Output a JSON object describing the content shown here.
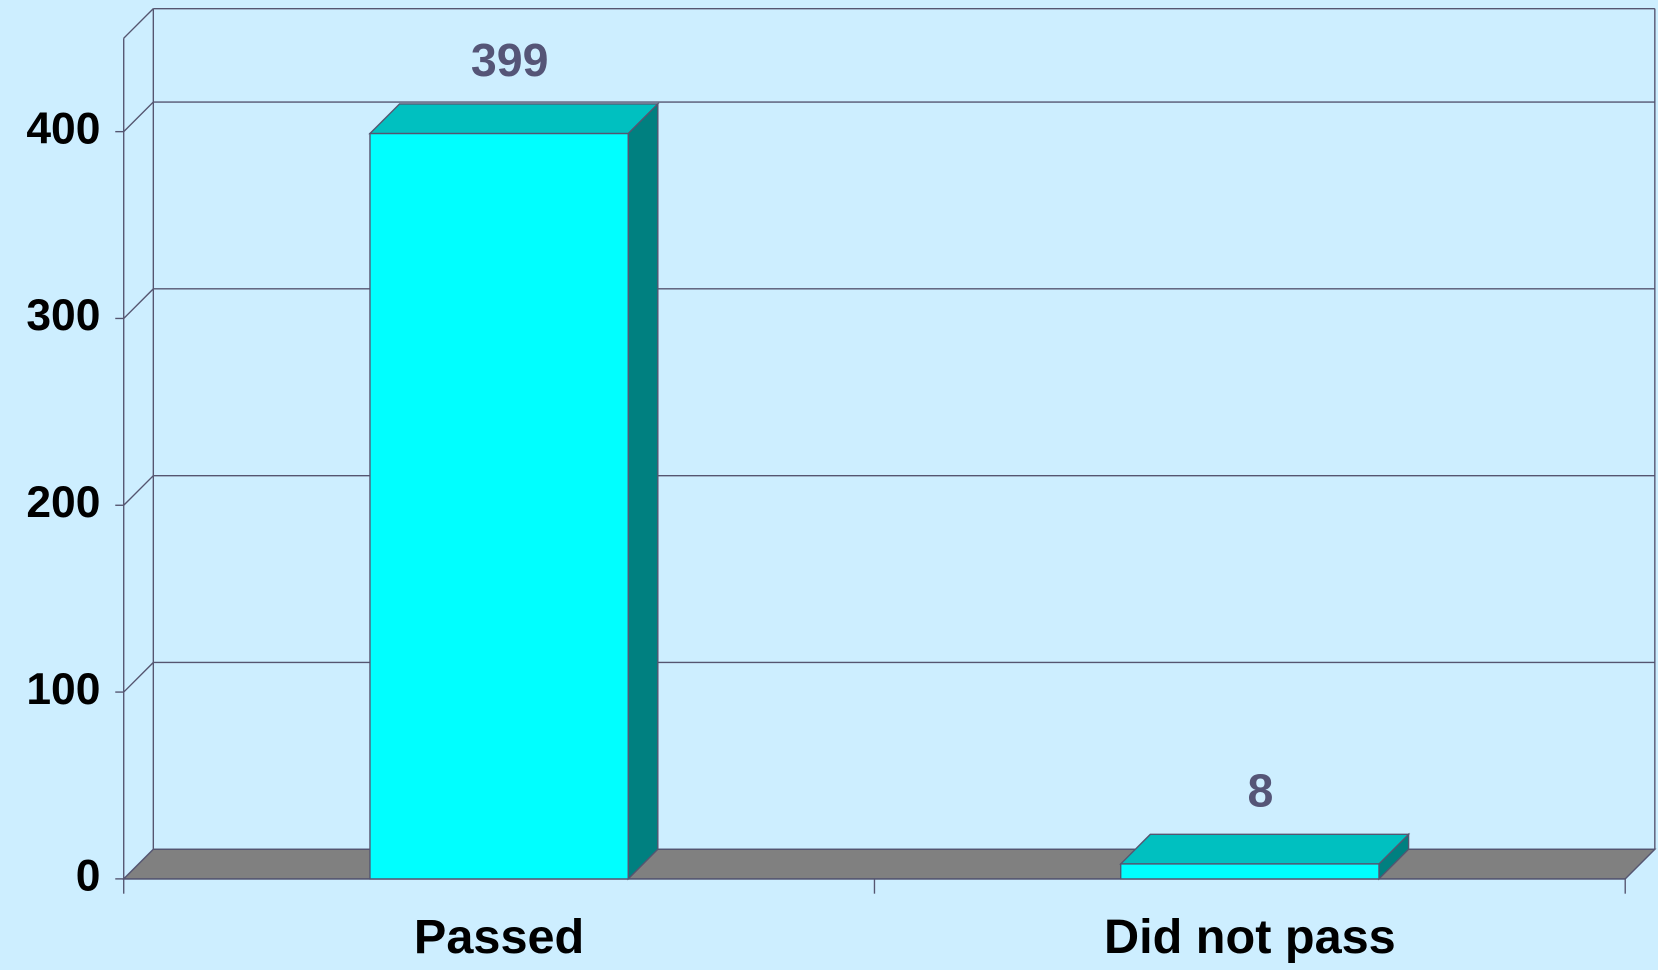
{
  "chart_data": {
    "type": "bar3d",
    "categories": [
      "Passed",
      "Did not pass"
    ],
    "values": [
      399,
      8
    ],
    "color": "#00ffff",
    "ylim": [
      0,
      450
    ],
    "yticks": [
      0,
      100,
      200,
      300,
      400
    ],
    "grid": true
  }
}
